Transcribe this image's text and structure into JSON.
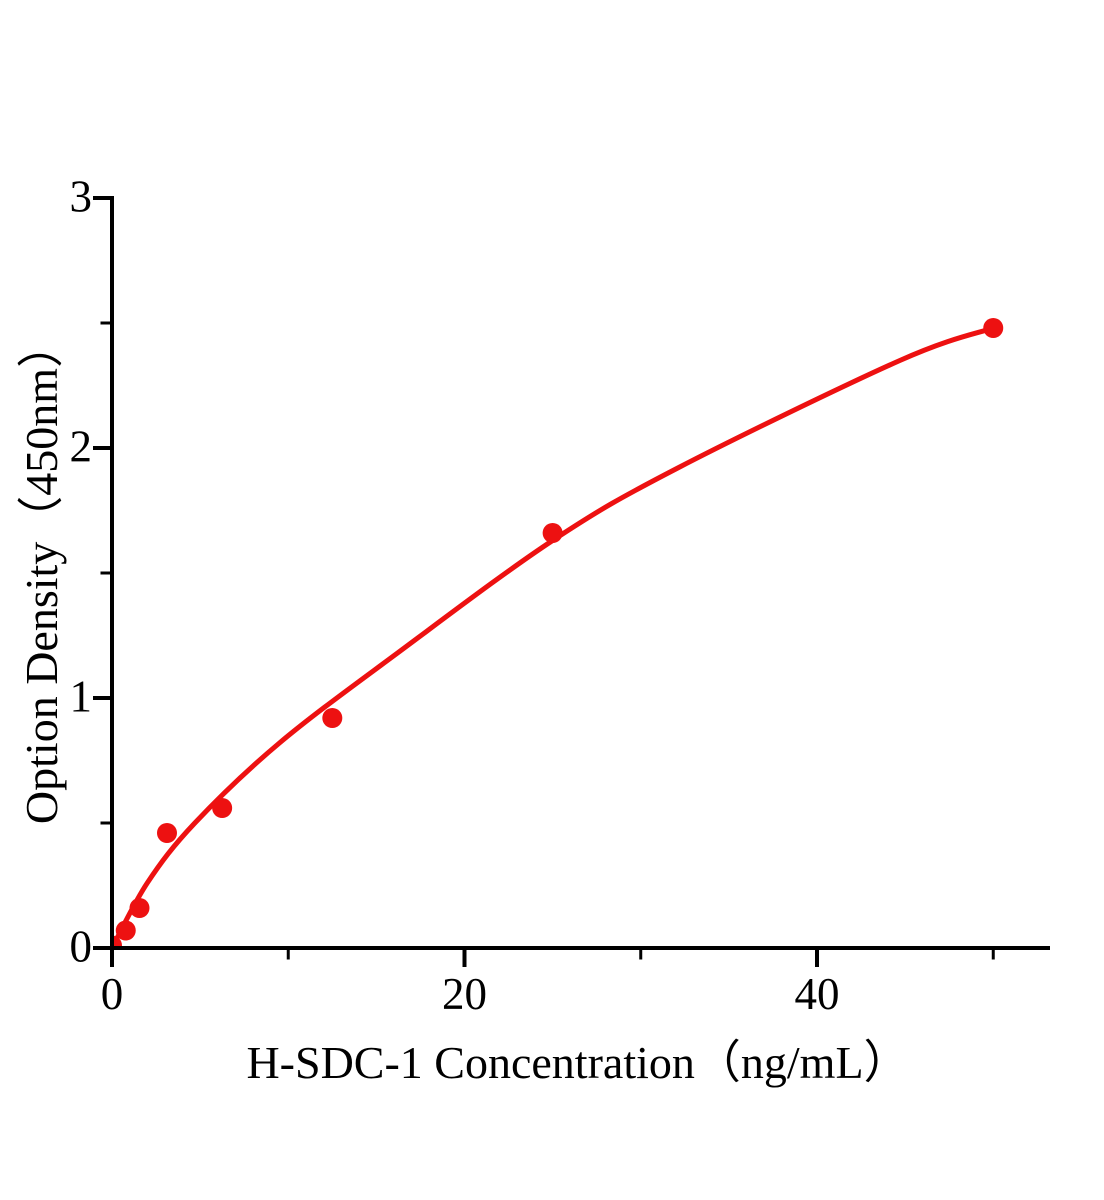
{
  "figure": {
    "background": "#ffffff",
    "axis_color": "#000000",
    "accent_color": "#ed1111"
  },
  "chart_data": {
    "type": "scatter",
    "title": "",
    "xlabel": "H-SDC-1 Concentration（ng/mL）",
    "ylabel": "Option Density（450nm）",
    "xlim": [
      0,
      53.1
    ],
    "ylim": [
      0,
      3
    ],
    "x_major_ticks": [
      0,
      20,
      40
    ],
    "x_minor_ticks": [
      10,
      30,
      50
    ],
    "y_major_ticks": [
      0,
      1,
      2,
      3
    ],
    "y_minor_ticks": [
      0.5,
      1.5,
      2.5
    ],
    "grid": false,
    "legend": "none",
    "series_color": "#ed1111",
    "points": [
      {
        "x": 0,
        "y": 0.01
      },
      {
        "x": 0.78,
        "y": 0.07
      },
      {
        "x": 1.56,
        "y": 0.16
      },
      {
        "x": 3.12,
        "y": 0.46
      },
      {
        "x": 6.25,
        "y": 0.56
      },
      {
        "x": 12.5,
        "y": 0.92
      },
      {
        "x": 25,
        "y": 1.66
      },
      {
        "x": 50,
        "y": 2.48
      }
    ],
    "fit_curve": [
      {
        "x": 0,
        "y": 0.0
      },
      {
        "x": 2.0,
        "y": 0.26
      },
      {
        "x": 4.7,
        "y": 0.5
      },
      {
        "x": 9.5,
        "y": 0.82
      },
      {
        "x": 16.2,
        "y": 1.18
      },
      {
        "x": 25,
        "y": 1.63
      },
      {
        "x": 32.1,
        "y": 1.92
      },
      {
        "x": 44.7,
        "y": 2.35
      },
      {
        "x": 50,
        "y": 2.48
      }
    ]
  }
}
